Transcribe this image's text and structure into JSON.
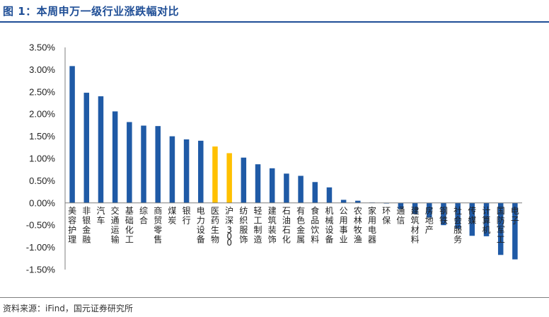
{
  "header": {
    "title": "图 1：本周申万一级行业涨跌幅对比"
  },
  "footer": {
    "source": "资料来源：iFind，国元证券研究所"
  },
  "colors": {
    "industry": "#1f5aa6",
    "benchmark": "#ffc000",
    "title": "#1f4e96"
  },
  "chart_data": {
    "type": "bar",
    "title": "本周申万一级行业涨跌幅对比",
    "xlabel": "",
    "ylabel": "",
    "ylim": [
      -1.5,
      3.5
    ],
    "ytick_step": 0.5,
    "ytick_labels": [
      "3.50%",
      "3.00%",
      "2.50%",
      "2.00%",
      "1.50%",
      "1.00%",
      "0.50%",
      "0.00%",
      "-0.50%",
      "-1.00%",
      "-1.50%"
    ],
    "grid": false,
    "legend": "none",
    "highlight": [
      "医药生物",
      "沪深300"
    ],
    "categories": [
      "美容护理",
      "非银金融",
      "汽车",
      "交通运输",
      "基础化工",
      "综合",
      "商贸零售",
      "煤炭",
      "银行",
      "电力设备",
      "医药生物",
      "沪深300",
      "纺织服饰",
      "轻工制造",
      "建筑装饰",
      "石油石化",
      "有色金属",
      "食品饮料",
      "机械设备",
      "公用事业",
      "农林牧渔",
      "家用电器",
      "环保",
      "通信",
      "建筑材料",
      "房地产",
      "钢铁",
      "社会服务",
      "传媒",
      "计算机",
      "国防军工",
      "电子"
    ],
    "values": [
      3.08,
      2.48,
      2.4,
      2.06,
      1.82,
      1.74,
      1.73,
      1.5,
      1.43,
      1.4,
      1.27,
      1.12,
      1.02,
      0.87,
      0.78,
      0.66,
      0.61,
      0.47,
      0.35,
      0.07,
      0.05,
      0.01,
      -0.01,
      -0.14,
      -0.25,
      -0.33,
      -0.5,
      -0.58,
      -0.74,
      -0.75,
      -1.17,
      -1.27
    ]
  }
}
